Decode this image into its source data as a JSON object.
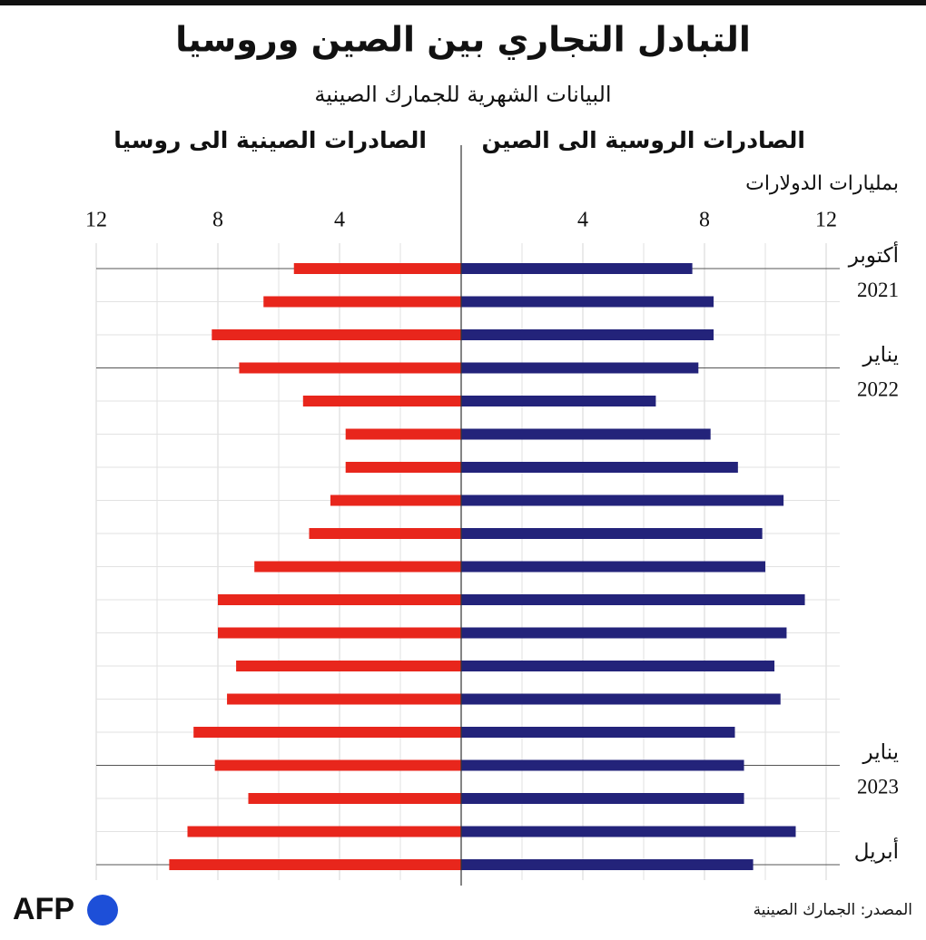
{
  "chart_data": {
    "type": "butterfly_bar",
    "title": "التبادل التجاري بين الصين وروسيا",
    "subtitle": "البيانات الشهرية للجمارك الصينية",
    "unit_label": "بمليارات الدولارات",
    "source": "المصدر: الجمارك الصينية",
    "logo": "AFP",
    "categories": [
      "أكتوبر 2021",
      null,
      null,
      "يناير 2022",
      null,
      null,
      null,
      null,
      null,
      null,
      null,
      null,
      null,
      null,
      null,
      "يناير 2023",
      null,
      null,
      "أبريل"
    ],
    "series": [
      {
        "name": "الصادرات الروسية الى الصين",
        "color": "#23237a",
        "side": "right",
        "values": [
          7.6,
          8.3,
          8.3,
          7.8,
          6.4,
          8.2,
          9.1,
          10.6,
          9.9,
          10.0,
          11.3,
          10.7,
          10.3,
          10.5,
          9.0,
          9.3,
          9.3,
          11.0,
          9.6
        ]
      },
      {
        "name": "الصادرات الصينية الى روسيا",
        "color": "#e8261c",
        "side": "left",
        "values": [
          5.5,
          6.5,
          8.2,
          7.3,
          5.2,
          3.8,
          3.8,
          4.3,
          5.0,
          6.8,
          8.0,
          8.0,
          7.4,
          7.7,
          8.8,
          8.1,
          7.0,
          9.0,
          9.6
        ]
      }
    ],
    "xlim": [
      0,
      12
    ],
    "xticks": [
      4,
      8,
      12
    ],
    "xminor_ticks": [
      2,
      6,
      10
    ],
    "grid": true
  }
}
